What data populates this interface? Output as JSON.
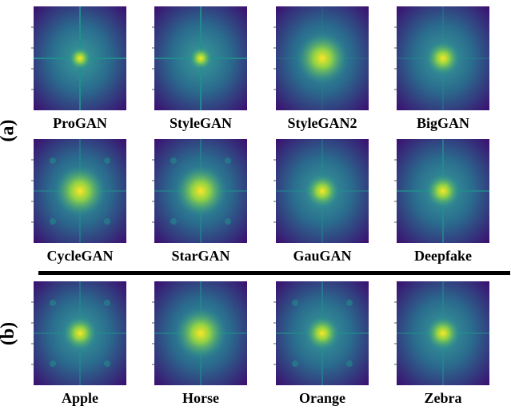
{
  "figure": {
    "group_a": {
      "label": "(a)",
      "panels": [
        {
          "caption": "ProGAN",
          "center_size": "small",
          "cross_strength": 0.9,
          "ring_spots": false
        },
        {
          "caption": "StyleGAN",
          "center_size": "small",
          "cross_strength": 0.85,
          "ring_spots": false
        },
        {
          "caption": "StyleGAN2",
          "center_size": "large",
          "cross_strength": 0.2,
          "ring_spots": false
        },
        {
          "caption": "BigGAN",
          "center_size": "medium",
          "cross_strength": 0.35,
          "ring_spots": false
        },
        {
          "caption": "CycleGAN",
          "center_size": "large",
          "cross_strength": 0.5,
          "ring_spots": true
        },
        {
          "caption": "StarGAN",
          "center_size": "large",
          "cross_strength": 0.55,
          "ring_spots": true
        },
        {
          "caption": "GauGAN",
          "center_size": "medium",
          "cross_strength": 0.45,
          "ring_spots": false
        },
        {
          "caption": "Deepfake",
          "center_size": "medium",
          "cross_strength": 0.7,
          "ring_spots": false
        }
      ]
    },
    "group_b": {
      "label": "(b)",
      "panels": [
        {
          "caption": "Apple",
          "center_size": "medium",
          "cross_strength": 0.5,
          "ring_spots": true
        },
        {
          "caption": "Horse",
          "center_size": "large",
          "cross_strength": 0.55,
          "ring_spots": false
        },
        {
          "caption": "Orange",
          "center_size": "medium",
          "cross_strength": 0.6,
          "ring_spots": true
        },
        {
          "caption": "Zebra",
          "center_size": "medium",
          "cross_strength": 0.5,
          "ring_spots": false
        }
      ]
    },
    "colormap": {
      "low": "#3b0f70",
      "mid": "#21908d",
      "high": "#fde725"
    }
  }
}
